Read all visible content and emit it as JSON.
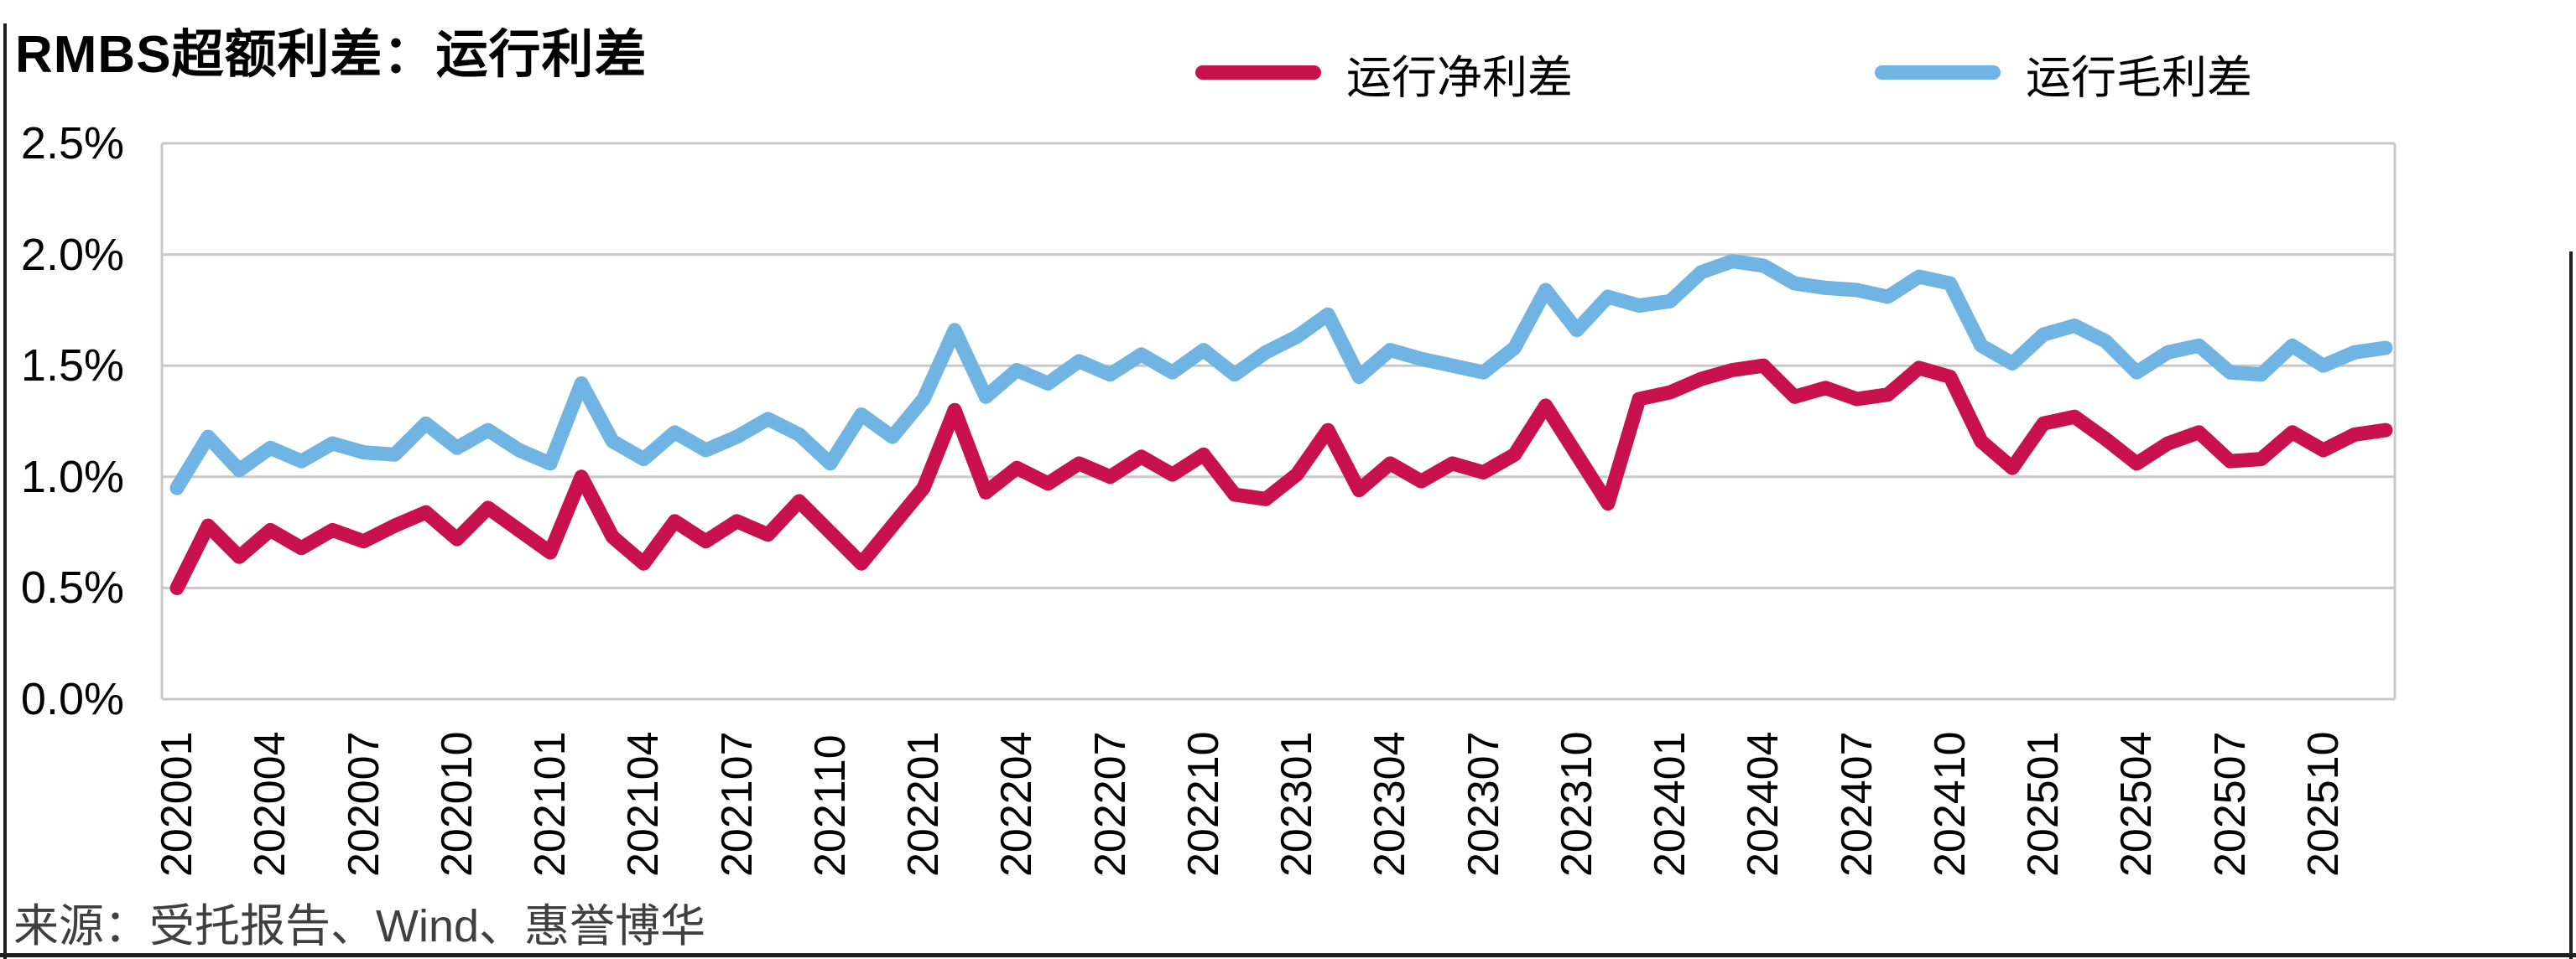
{
  "title": "RMBS超额利差：运行利差",
  "legend": {
    "net": {
      "label": "运行净利差",
      "color": "#C9114D"
    },
    "gross": {
      "label": "运行毛利差",
      "color": "#6FB4E3"
    }
  },
  "source": "来源：受托报告、Wind、惠誉博华",
  "colors": {
    "net_line": "#C9114D",
    "gross_line": "#6FB4E3",
    "gridline": "#C8C8C8",
    "text": "#000000",
    "source_text": "#3F3F3F",
    "frame": "#1F1F1F"
  },
  "chart_data": {
    "type": "line",
    "title": "RMBS超额利差：运行利差",
    "xlabel": "",
    "ylabel": "",
    "ylim": [
      0,
      2.5
    ],
    "grid": "horizontal",
    "legend_position": "top",
    "xtick_step": 3,
    "yticks": {
      "labels": [
        "0.0%",
        "0.5%",
        "1.0%",
        "1.5%",
        "2.0%",
        "2.5%"
      ],
      "values": [
        0,
        0.5,
        1.0,
        1.5,
        2.0,
        2.5
      ]
    },
    "x": [
      "202001",
      "202002",
      "202003",
      "202004",
      "202005",
      "202006",
      "202007",
      "202008",
      "202009",
      "202010",
      "202011",
      "202012",
      "202101",
      "202102",
      "202103",
      "202104",
      "202105",
      "202106",
      "202107",
      "202108",
      "202109",
      "202110",
      "202111",
      "202112",
      "202201",
      "202202",
      "202203",
      "202204",
      "202205",
      "202206",
      "202207",
      "202208",
      "202209",
      "202210",
      "202211",
      "202212",
      "202301",
      "202302",
      "202303",
      "202304",
      "202305",
      "202306",
      "202307",
      "202308",
      "202309",
      "202310",
      "202311",
      "202312",
      "202401",
      "202402",
      "202403",
      "202404",
      "202405",
      "202406",
      "202407",
      "202408",
      "202409",
      "202410",
      "202411",
      "202412",
      "202501",
      "202502",
      "202503",
      "202504",
      "202505",
      "202506",
      "202507",
      "202508",
      "202509",
      "202510",
      "202511",
      "202512"
    ],
    "series": [
      {
        "id": "gross",
        "name": "运行毛利差",
        "color": "#6FB4E3",
        "values": [
          0.95,
          1.18,
          1.03,
          1.13,
          1.07,
          1.15,
          1.11,
          1.1,
          1.24,
          1.13,
          1.21,
          1.12,
          1.06,
          1.42,
          1.16,
          1.08,
          1.2,
          1.12,
          1.18,
          1.26,
          1.19,
          1.06,
          1.28,
          1.18,
          1.35,
          1.66,
          1.36,
          1.48,
          1.42,
          1.52,
          1.46,
          1.55,
          1.47,
          1.57,
          1.46,
          1.56,
          1.63,
          1.73,
          1.45,
          1.57,
          1.53,
          1.5,
          1.47,
          1.58,
          1.84,
          1.66,
          1.81,
          1.77,
          1.79,
          1.92,
          1.97,
          1.95,
          1.87,
          1.85,
          1.84,
          1.81,
          1.9,
          1.87,
          1.59,
          1.51,
          1.64,
          1.68,
          1.61,
          1.47,
          1.56,
          1.59,
          1.47,
          1.46,
          1.59,
          1.5,
          1.56,
          1.58
        ]
      },
      {
        "id": "net",
        "name": "运行净利差",
        "color": "#C9114D",
        "values": [
          0.5,
          0.78,
          0.64,
          0.76,
          0.68,
          0.76,
          0.71,
          0.78,
          0.84,
          0.72,
          0.86,
          0.76,
          0.66,
          1.0,
          0.73,
          0.61,
          0.8,
          0.71,
          0.8,
          0.74,
          0.89,
          0.75,
          0.61,
          0.78,
          0.95,
          1.3,
          0.93,
          1.04,
          0.97,
          1.06,
          1.0,
          1.09,
          1.01,
          1.1,
          0.92,
          0.9,
          1.01,
          1.21,
          0.94,
          1.06,
          0.98,
          1.06,
          1.02,
          1.1,
          1.32,
          1.1,
          0.88,
          1.35,
          1.38,
          1.44,
          1.48,
          1.5,
          1.36,
          1.4,
          1.35,
          1.37,
          1.49,
          1.45,
          1.16,
          1.04,
          1.24,
          1.27,
          1.17,
          1.06,
          1.15,
          1.2,
          1.07,
          1.08,
          1.2,
          1.12,
          1.19,
          1.21
        ]
      }
    ]
  }
}
